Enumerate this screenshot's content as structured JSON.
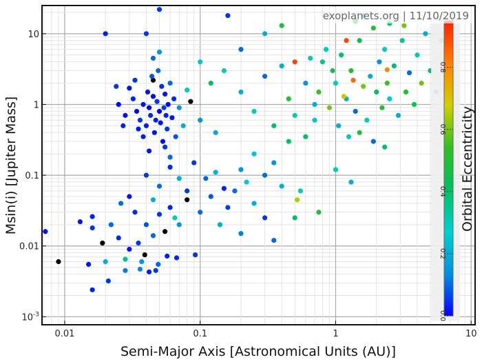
{
  "chart_data": {
    "type": "scatter",
    "title": "",
    "watermark": "exoplanets.org | 11/10/2019",
    "xlabel": "Semi-Major Axis [Astronomical Units (AU)]",
    "ylabel": "Msin(i) [Jupiter Mass]",
    "xscale": "log",
    "yscale": "log",
    "xlim": [
      0.0068,
      10.7
    ],
    "ylim": [
      0.00077,
      25
    ],
    "xticks": [
      {
        "v": 0.01,
        "label": "0.01"
      },
      {
        "v": 0.1,
        "label": "0.1"
      },
      {
        "v": 1,
        "label": "1"
      },
      {
        "v": 10,
        "label": "10"
      }
    ],
    "yticks": [
      {
        "v": 10,
        "label": "10"
      },
      {
        "v": 1,
        "label": "1"
      },
      {
        "v": 0.1,
        "label": "0.1"
      },
      {
        "v": 0.01,
        "label": "0.01"
      },
      {
        "v": 0.001,
        "label": "10-3"
      }
    ],
    "grid": true,
    "colorbar": {
      "label": "Orbital Eccentricity",
      "range": [
        0,
        0.95
      ],
      "ticks": [
        "0.0",
        "0.2",
        "0.4",
        "0.6",
        "0.8"
      ],
      "tick_values": [
        0,
        0.2,
        0.4,
        0.6,
        0.8
      ],
      "colors": [
        "#0000ff",
        "#0090e0",
        "#00d0d0",
        "#00c060",
        "#30c020",
        "#d0d000",
        "#ff8000",
        "#ff2000"
      ]
    },
    "point_fields": [
      "semi_major_axis",
      "msini",
      "eccentricity"
    ],
    "points": [
      [
        0.0072,
        0.016,
        0.02
      ],
      [
        0.009,
        0.006,
        null
      ],
      [
        0.019,
        0.011,
        null
      ],
      [
        0.039,
        0.0075,
        null
      ],
      [
        0.08,
        0.045,
        null
      ],
      [
        0.085,
        1.1,
        null
      ],
      [
        0.055,
        0.016,
        null
      ],
      [
        0.045,
        2.2,
        null
      ],
      [
        0.015,
        0.0055,
        0.02
      ],
      [
        0.016,
        0.0024,
        0.03
      ],
      [
        0.021,
        0.0032,
        0.05
      ],
      [
        0.02,
        0.006,
        0.2
      ],
      [
        0.028,
        0.0065,
        0.35
      ],
      [
        0.037,
        0.006,
        0.15
      ],
      [
        0.028,
        0.0045,
        0.12
      ],
      [
        0.036,
        0.0047,
        0.13
      ],
      [
        0.042,
        0.0043,
        0.03
      ],
      [
        0.047,
        0.0045,
        0.05
      ],
      [
        0.049,
        0.0055,
        0.1
      ],
      [
        0.057,
        0.0072,
        0.03
      ],
      [
        0.067,
        0.0068,
        0.04
      ],
      [
        0.092,
        0.0075,
        0.05
      ],
      [
        0.013,
        0.022,
        0.02
      ],
      [
        0.016,
        0.026,
        0.03
      ],
      [
        0.016,
        0.018,
        0.05
      ],
      [
        0.022,
        0.02,
        0.1
      ],
      [
        0.025,
        0.013,
        0.04
      ],
      [
        0.03,
        0.009,
        0.02
      ],
      [
        0.035,
        0.011,
        0.05
      ],
      [
        0.04,
        0.02,
        0.08
      ],
      [
        0.045,
        0.014,
        0.1
      ],
      [
        0.05,
        0.028,
        0.05
      ],
      [
        0.06,
        0.035,
        0.03
      ],
      [
        0.07,
        0.02,
        0.15
      ],
      [
        0.08,
        0.06,
        0.05
      ],
      [
        0.1,
        0.03,
        0.1
      ],
      [
        0.12,
        0.05,
        0.08
      ],
      [
        0.14,
        0.02,
        0.2
      ],
      [
        0.16,
        0.035,
        0.06
      ],
      [
        0.18,
        0.06,
        0.1
      ],
      [
        0.2,
        0.015,
        0.12
      ],
      [
        0.25,
        0.04,
        0.2
      ],
      [
        0.3,
        0.025,
        0.05
      ],
      [
        0.35,
        0.012,
        0.1
      ],
      [
        0.04,
        0.1,
        0.05
      ],
      [
        0.05,
        0.07,
        0.1
      ],
      [
        0.06,
        0.13,
        0.04
      ],
      [
        0.07,
        0.09,
        0.2
      ],
      [
        0.09,
        0.15,
        0.05
      ],
      [
        0.11,
        0.09,
        0.1
      ],
      [
        0.13,
        0.11,
        0.22
      ],
      [
        0.15,
        0.065,
        0.03
      ],
      [
        0.2,
        0.12,
        0.15
      ],
      [
        0.22,
        0.08,
        0.25
      ],
      [
        0.3,
        0.1,
        0.1
      ],
      [
        0.4,
        0.07,
        0.2
      ],
      [
        0.5,
        0.025,
        0.4
      ],
      [
        0.55,
        0.06,
        0.3
      ],
      [
        0.75,
        0.03,
        0.5
      ],
      [
        0.52,
        0.045,
        0.65
      ],
      [
        0.03,
        0.05,
        0.02
      ],
      [
        0.033,
        0.03,
        0.04
      ],
      [
        0.026,
        0.04,
        0.1
      ],
      [
        0.045,
        0.045,
        0.2
      ],
      [
        0.065,
        0.025,
        0.3
      ],
      [
        0.03,
        1.7,
        0.02
      ],
      [
        0.032,
        1.2,
        0.03
      ],
      [
        0.034,
        0.8,
        0.01
      ],
      [
        0.036,
        0.6,
        0.05
      ],
      [
        0.038,
        1.0,
        0.02
      ],
      [
        0.04,
        0.5,
        0.03
      ],
      [
        0.041,
        1.5,
        0.02
      ],
      [
        0.042,
        0.9,
        0.0
      ],
      [
        0.043,
        0.7,
        0.04
      ],
      [
        0.044,
        2.5,
        0.08
      ],
      [
        0.045,
        1.3,
        0.01
      ],
      [
        0.046,
        0.4,
        0.02
      ],
      [
        0.047,
        0.6,
        0.03
      ],
      [
        0.048,
        1.1,
        0.05
      ],
      [
        0.049,
        3.0,
        0.1
      ],
      [
        0.05,
        0.8,
        0.0
      ],
      [
        0.051,
        0.55,
        0.02
      ],
      [
        0.052,
        1.8,
        0.04
      ],
      [
        0.053,
        0.3,
        0.01
      ],
      [
        0.054,
        0.9,
        0.06
      ],
      [
        0.055,
        1.4,
        0.02
      ],
      [
        0.056,
        0.7,
        0.03
      ],
      [
        0.057,
        0.45,
        0.05
      ],
      [
        0.058,
        1.0,
        0.01
      ],
      [
        0.06,
        2.0,
        0.1
      ],
      [
        0.062,
        0.65,
        0.02
      ],
      [
        0.064,
        1.2,
        0.04
      ],
      [
        0.066,
        0.35,
        0.08
      ],
      [
        0.07,
        0.9,
        0.15
      ],
      [
        0.075,
        0.5,
        0.2
      ],
      [
        0.08,
        1.6,
        0.3
      ],
      [
        0.035,
        0.45,
        0.02
      ],
      [
        0.038,
        0.35,
        0.03
      ],
      [
        0.033,
        2.2,
        0.05
      ],
      [
        0.028,
        0.7,
        0.02
      ],
      [
        0.025,
        1.0,
        0.01
      ],
      [
        0.024,
        1.8,
        0.05
      ],
      [
        0.027,
        0.5,
        0.03
      ],
      [
        0.045,
        4.5,
        0.1
      ],
      [
        0.05,
        5.5,
        0.15
      ],
      [
        0.055,
        0.25,
        0.05
      ],
      [
        0.042,
        0.22,
        0.02
      ],
      [
        0.06,
        0.18,
        0.1
      ],
      [
        0.04,
        10,
        0.05
      ],
      [
        0.02,
        10,
        0.03
      ],
      [
        0.05,
        22,
        0.05
      ],
      [
        0.1,
        4,
        0.25
      ],
      [
        0.12,
        2,
        0.4
      ],
      [
        0.15,
        3,
        0.3
      ],
      [
        0.1,
        0.6,
        0.15
      ],
      [
        0.13,
        0.4,
        0.2
      ],
      [
        0.2,
        1.5,
        0.2
      ],
      [
        0.25,
        0.8,
        0.3
      ],
      [
        0.3,
        2.5,
        0.1
      ],
      [
        0.35,
        0.5,
        0.4
      ],
      [
        0.4,
        3.5,
        0.2
      ],
      [
        0.45,
        1.2,
        0.5
      ],
      [
        0.5,
        0.7,
        0.3
      ],
      [
        0.6,
        2,
        0.15
      ],
      [
        0.7,
        1.0,
        0.2
      ],
      [
        0.8,
        4,
        0.35
      ],
      [
        0.2,
        6,
        0.1
      ],
      [
        0.3,
        10,
        0.2
      ],
      [
        0.4,
        13,
        0.5
      ],
      [
        0.16,
        18,
        0.05
      ],
      [
        0.5,
        4,
        0.9
      ],
      [
        0.25,
        0.2,
        0.25
      ],
      [
        0.35,
        0.15,
        0.15
      ],
      [
        0.45,
        0.3,
        0.4
      ],
      [
        1.0,
        2,
        0.3
      ],
      [
        1.1,
        5,
        0.4
      ],
      [
        1.2,
        1.2,
        0.2
      ],
      [
        1.3,
        3,
        0.5
      ],
      [
        1.4,
        0.8,
        0.1
      ],
      [
        1.5,
        8,
        0.45
      ],
      [
        1.6,
        1.8,
        0.6
      ],
      [
        1.7,
        0.6,
        0.3
      ],
      [
        1.8,
        2.5,
        0.2
      ],
      [
        1.9,
        12,
        0.5
      ],
      [
        2.0,
        1.5,
        0.4
      ],
      [
        2.1,
        4,
        0.15
      ],
      [
        2.2,
        0.9,
        0.5
      ],
      [
        2.3,
        6,
        0.3
      ],
      [
        2.4,
        2,
        0.55
      ],
      [
        2.5,
        1.2,
        0.25
      ],
      [
        2.7,
        3.5,
        0.4
      ],
      [
        2.9,
        0.7,
        0.2
      ],
      [
        3.1,
        8,
        0.35
      ],
      [
        3.3,
        1.5,
        0.5
      ],
      [
        3.5,
        2.8,
        0.1
      ],
      [
        3.8,
        1.0,
        0.45
      ],
      [
        4.0,
        5,
        0.3
      ],
      [
        4.3,
        2,
        0.6
      ],
      [
        4.6,
        10,
        0.2
      ],
      [
        5.0,
        3,
        0.4
      ],
      [
        5.5,
        1.5,
        0.3
      ],
      [
        6.0,
        8,
        0.5
      ],
      [
        1.05,
        0.5,
        0.2
      ],
      [
        1.25,
        0.35,
        0.3
      ],
      [
        1.5,
        0.4,
        0.5
      ],
      [
        1.9,
        0.3,
        0.1
      ],
      [
        2.3,
        0.25,
        0.4
      ],
      [
        1.0,
        0.12,
        0.3
      ],
      [
        1.3,
        0.08,
        0.2
      ],
      [
        0.9,
        0.9,
        0.6
      ],
      [
        0.95,
        3,
        0.45
      ],
      [
        0.85,
        6,
        0.3
      ],
      [
        1.15,
        1.3,
        0.7
      ],
      [
        1.4,
        15,
        0.5
      ],
      [
        1.6,
        18,
        0.2
      ],
      [
        2.5,
        14,
        0.4
      ],
      [
        3.2,
        13,
        0.6
      ],
      [
        0.7,
        0.6,
        0.25
      ],
      [
        0.75,
        1.5,
        0.55
      ],
      [
        0.65,
        4.5,
        0.3
      ],
      [
        0.6,
        0.35,
        0.4
      ],
      [
        1.35,
        2.2,
        0.85
      ],
      [
        2.4,
        3.1,
        0.8
      ],
      [
        1.2,
        8,
        0.9
      ]
    ]
  }
}
